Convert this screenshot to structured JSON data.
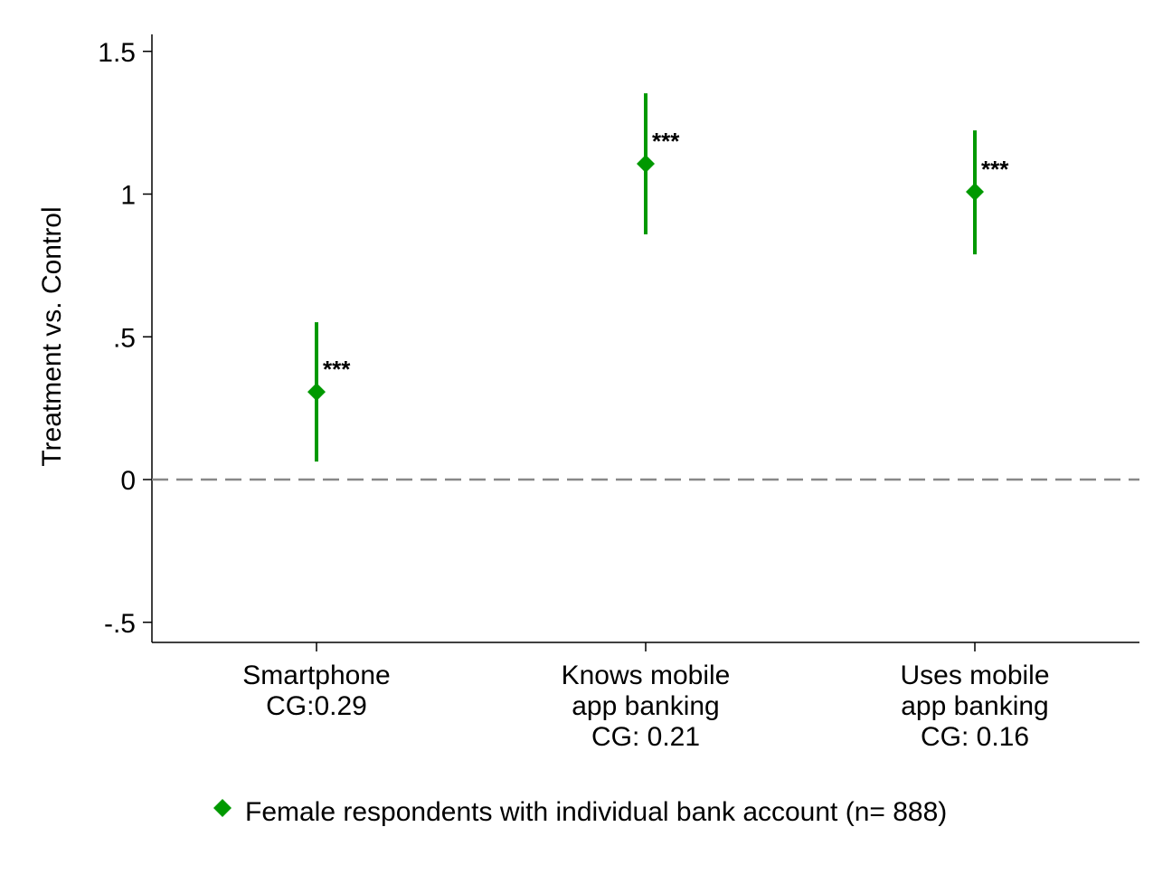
{
  "chart_data": {
    "type": "scatter",
    "title": "",
    "xlabel": "",
    "ylabel": "Treatment vs. Control",
    "ylim": [
      -0.57,
      1.57
    ],
    "yticks": [
      -0.5,
      0,
      0.5,
      1,
      1.5
    ],
    "ytick_labels": [
      "-.5",
      "0",
      ".5",
      "1",
      "1.5"
    ],
    "grid": false,
    "reference_line": 0,
    "color": "#009900",
    "categories": [
      {
        "lines": [
          "Smartphone",
          "CG:0.29"
        ]
      },
      {
        "lines": [
          "Knows mobile",
          "app banking",
          "CG: 0.21"
        ]
      },
      {
        "lines": [
          "Uses mobile",
          "app banking",
          "CG: 0.16"
        ]
      }
    ],
    "series": [
      {
        "name": "Female respondents with individual bank account (n= 888)",
        "values": [
          0.307,
          1.106,
          1.008
        ],
        "ci_low": [
          0.063,
          0.859,
          0.789
        ],
        "ci_high": [
          0.551,
          1.353,
          1.223
        ],
        "annotations": [
          "***",
          "***",
          "***"
        ]
      }
    ],
    "legend_position": "bottom"
  }
}
